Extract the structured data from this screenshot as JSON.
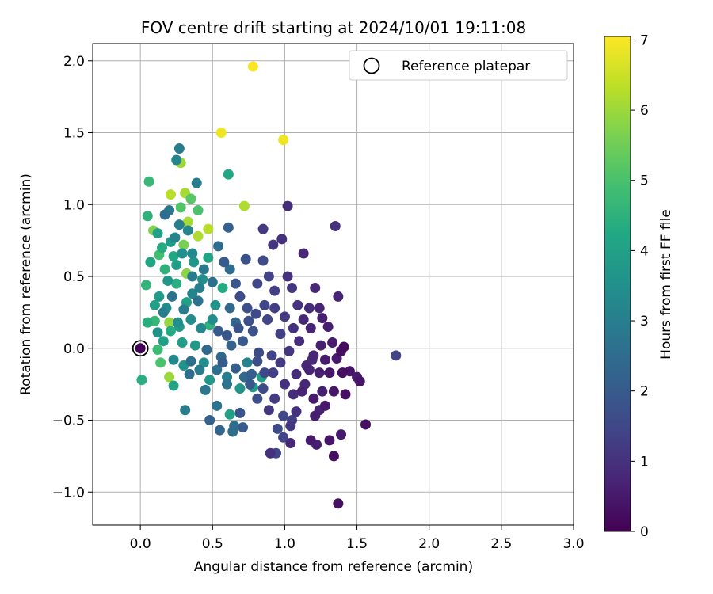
{
  "chart_data": {
    "type": "scatter",
    "title": "FOV centre drift starting at 2024/10/01 19:11:08",
    "xlabel": "Angular distance from reference (arcmin)",
    "ylabel": "Rotation from reference (arcmin)",
    "xlim": [
      -0.33,
      3.0
    ],
    "ylim": [
      -1.23,
      2.12
    ],
    "xticks": [
      "0.0",
      "0.5",
      "1.0",
      "1.5",
      "2.0",
      "2.5",
      "3.0"
    ],
    "xtick_values": [
      0,
      0.5,
      1,
      1.5,
      2,
      2.5,
      3
    ],
    "yticks": [
      "−1.0",
      "−0.5",
      "0.0",
      "0.5",
      "1.0",
      "1.5",
      "2.0"
    ],
    "ytick_values": [
      -1,
      -0.5,
      0,
      0.5,
      1,
      1.5,
      2
    ],
    "grid": true,
    "legend": {
      "position": "top-right",
      "entries": [
        "Reference platepar"
      ]
    },
    "reference_point": {
      "x": 0.0,
      "y": 0.0
    },
    "colorbar": {
      "label": "Hours from first FF file",
      "range": [
        0,
        7.05
      ],
      "ticks": [
        "0",
        "1",
        "2",
        "3",
        "4",
        "5",
        "6",
        "7"
      ],
      "tick_values": [
        0,
        1,
        2,
        3,
        4,
        5,
        6,
        7
      ],
      "colormap": "viridis"
    },
    "points": [
      {
        "x": 0.78,
        "y": 1.96,
        "t": 7.0
      },
      {
        "x": 0.56,
        "y": 1.5,
        "t": 6.9
      },
      {
        "x": 0.99,
        "y": 1.45,
        "t": 6.9
      },
      {
        "x": 0.72,
        "y": 0.99,
        "t": 6.2
      },
      {
        "x": 0.31,
        "y": 1.08,
        "t": 6.1
      },
      {
        "x": 0.21,
        "y": 1.07,
        "t": 6.3
      },
      {
        "x": 0.28,
        "y": 1.29,
        "t": 6.0
      },
      {
        "x": 0.47,
        "y": 0.83,
        "t": 6.3
      },
      {
        "x": 0.4,
        "y": 0.78,
        "t": 6.2
      },
      {
        "x": 0.33,
        "y": 0.88,
        "t": 6.1
      },
      {
        "x": 0.2,
        "y": 0.18,
        "t": 5.9
      },
      {
        "x": 0.2,
        "y": -0.2,
        "t": 6.0
      },
      {
        "x": 0.32,
        "y": 0.52,
        "t": 5.8
      },
      {
        "x": 0.09,
        "y": 0.82,
        "t": 5.7
      },
      {
        "x": 0.3,
        "y": 0.72,
        "t": 5.6
      },
      {
        "x": 0.06,
        "y": 1.16,
        "t": 4.7
      },
      {
        "x": 0.35,
        "y": 1.04,
        "t": 5.2
      },
      {
        "x": 0.4,
        "y": 0.96,
        "t": 5.0
      },
      {
        "x": 0.28,
        "y": 0.98,
        "t": 5.1
      },
      {
        "x": 0.05,
        "y": 0.92,
        "t": 4.5
      },
      {
        "x": 0.61,
        "y": 1.21,
        "t": 4.2
      },
      {
        "x": 0.27,
        "y": 1.39,
        "t": 2.9
      },
      {
        "x": 0.25,
        "y": 1.31,
        "t": 3.2
      },
      {
        "x": 0.39,
        "y": 1.15,
        "t": 3.0
      },
      {
        "x": 0.17,
        "y": 0.93,
        "t": 2.5
      },
      {
        "x": 0.24,
        "y": 0.77,
        "t": 3.1
      },
      {
        "x": 0.13,
        "y": 0.65,
        "t": 4.9
      },
      {
        "x": 0.07,
        "y": 0.6,
        "t": 4.2
      },
      {
        "x": 0.17,
        "y": 0.55,
        "t": 4.5
      },
      {
        "x": 0.25,
        "y": 0.58,
        "t": 3.9
      },
      {
        "x": 0.04,
        "y": 0.44,
        "t": 4.6
      },
      {
        "x": 0.13,
        "y": 0.36,
        "t": 3.8
      },
      {
        "x": 0.18,
        "y": 0.28,
        "t": 3.4
      },
      {
        "x": 0.1,
        "y": 0.19,
        "t": 4.7
      },
      {
        "x": 0.05,
        "y": 0.18,
        "t": 4.4
      },
      {
        "x": 0.21,
        "y": 0.12,
        "t": 4.3
      },
      {
        "x": 0.29,
        "y": 0.04,
        "t": 3.9
      },
      {
        "x": 0.23,
        "y": -0.08,
        "t": 3.3
      },
      {
        "x": 0.12,
        "y": -0.01,
        "t": 4.8
      },
      {
        "x": 0.14,
        "y": -0.1,
        "t": 5.0
      },
      {
        "x": 0.01,
        "y": -0.22,
        "t": 4.4
      },
      {
        "x": 0.23,
        "y": -0.26,
        "t": 4.1
      },
      {
        "x": 0.16,
        "y": 0.25,
        "t": 3.0
      },
      {
        "x": 0.22,
        "y": 0.36,
        "t": 2.7
      },
      {
        "x": 0.3,
        "y": 0.27,
        "t": 2.9
      },
      {
        "x": 0.35,
        "y": 0.2,
        "t": 3.4
      },
      {
        "x": 0.36,
        "y": 0.38,
        "t": 3.2
      },
      {
        "x": 0.41,
        "y": 0.42,
        "t": 3.0
      },
      {
        "x": 0.44,
        "y": 0.55,
        "t": 2.8
      },
      {
        "x": 0.47,
        "y": 0.63,
        "t": 4.1
      },
      {
        "x": 0.54,
        "y": 0.71,
        "t": 2.5
      },
      {
        "x": 0.61,
        "y": 0.84,
        "t": 2.2
      },
      {
        "x": 0.58,
        "y": 0.6,
        "t": 2.0
      },
      {
        "x": 0.48,
        "y": 0.16,
        "t": 4.5
      },
      {
        "x": 0.42,
        "y": 0.14,
        "t": 3.3
      },
      {
        "x": 0.38,
        "y": 0.02,
        "t": 3.7
      },
      {
        "x": 0.46,
        "y": -0.01,
        "t": 2.4
      },
      {
        "x": 0.35,
        "y": -0.09,
        "t": 2.6
      },
      {
        "x": 0.31,
        "y": -0.43,
        "t": 2.9
      },
      {
        "x": 0.45,
        "y": -0.29,
        "t": 2.8
      },
      {
        "x": 0.48,
        "y": -0.5,
        "t": 2.2
      },
      {
        "x": 0.53,
        "y": -0.4,
        "t": 2.7
      },
      {
        "x": 0.55,
        "y": -0.57,
        "t": 2.3
      },
      {
        "x": 0.62,
        "y": -0.46,
        "t": 4.0
      },
      {
        "x": 0.65,
        "y": -0.54,
        "t": 2.5
      },
      {
        "x": 0.69,
        "y": -0.45,
        "t": 1.8
      },
      {
        "x": 0.71,
        "y": -0.55,
        "t": 2.0
      },
      {
        "x": 0.64,
        "y": -0.58,
        "t": 2.6
      },
      {
        "x": 0.6,
        "y": -0.25,
        "t": 2.7
      },
      {
        "x": 0.66,
        "y": -0.14,
        "t": 2.1
      },
      {
        "x": 0.72,
        "y": -0.2,
        "t": 2.4
      },
      {
        "x": 0.74,
        "y": -0.1,
        "t": 3.1
      },
      {
        "x": 0.56,
        "y": -0.06,
        "t": 2.4
      },
      {
        "x": 0.63,
        "y": 0.02,
        "t": 2.2
      },
      {
        "x": 0.71,
        "y": 0.05,
        "t": 2.0
      },
      {
        "x": 0.78,
        "y": 0.12,
        "t": 1.8
      },
      {
        "x": 0.74,
        "y": 0.28,
        "t": 1.7
      },
      {
        "x": 0.69,
        "y": 0.36,
        "t": 1.6
      },
      {
        "x": 0.66,
        "y": 0.45,
        "t": 1.9
      },
      {
        "x": 0.62,
        "y": 0.55,
        "t": 2.5
      },
      {
        "x": 0.73,
        "y": 0.62,
        "t": 1.8
      },
      {
        "x": 0.85,
        "y": 0.61,
        "t": 1.6
      },
      {
        "x": 0.89,
        "y": 0.5,
        "t": 1.4
      },
      {
        "x": 0.93,
        "y": 0.4,
        "t": 1.3
      },
      {
        "x": 0.81,
        "y": 0.45,
        "t": 1.5
      },
      {
        "x": 0.85,
        "y": 0.83,
        "t": 1.2
      },
      {
        "x": 0.92,
        "y": 0.72,
        "t": 1.1
      },
      {
        "x": 0.98,
        "y": 0.76,
        "t": 1.0
      },
      {
        "x": 1.02,
        "y": 0.99,
        "t": 0.9
      },
      {
        "x": 1.05,
        "y": 0.42,
        "t": 1.1
      },
      {
        "x": 1.13,
        "y": 0.66,
        "t": 0.8
      },
      {
        "x": 1.02,
        "y": 0.5,
        "t": 1.0
      },
      {
        "x": 1.09,
        "y": 0.3,
        "t": 1.0
      },
      {
        "x": 1.17,
        "y": 0.28,
        "t": 0.9
      },
      {
        "x": 1.21,
        "y": 0.42,
        "t": 0.8
      },
      {
        "x": 1.24,
        "y": 0.28,
        "t": 0.7
      },
      {
        "x": 1.35,
        "y": 0.85,
        "t": 1.0
      },
      {
        "x": 1.37,
        "y": 0.36,
        "t": 0.7
      },
      {
        "x": 1.3,
        "y": 0.15,
        "t": 0.6
      },
      {
        "x": 1.25,
        "y": 0.02,
        "t": 0.6
      },
      {
        "x": 1.2,
        "y": -0.05,
        "t": 0.7
      },
      {
        "x": 1.15,
        "y": -0.12,
        "t": 0.8
      },
      {
        "x": 1.08,
        "y": -0.18,
        "t": 0.9
      },
      {
        "x": 1.12,
        "y": -0.3,
        "t": 0.7
      },
      {
        "x": 1.2,
        "y": -0.35,
        "t": 0.5
      },
      {
        "x": 1.28,
        "y": -0.4,
        "t": 0.5
      },
      {
        "x": 1.34,
        "y": -0.3,
        "t": 0.4
      },
      {
        "x": 1.4,
        "y": -0.17,
        "t": 0.3
      },
      {
        "x": 1.42,
        "y": -0.32,
        "t": 0.3
      },
      {
        "x": 1.31,
        "y": -0.64,
        "t": 0.4
      },
      {
        "x": 1.34,
        "y": -0.75,
        "t": 0.3
      },
      {
        "x": 1.39,
        "y": -0.6,
        "t": 0.5
      },
      {
        "x": 1.37,
        "y": -1.08,
        "t": 0.3
      },
      {
        "x": 1.22,
        "y": -0.67,
        "t": 0.6
      },
      {
        "x": 1.18,
        "y": -0.64,
        "t": 0.5
      },
      {
        "x": 1.04,
        "y": -0.66,
        "t": 0.8
      },
      {
        "x": 0.99,
        "y": -0.62,
        "t": 1.4
      },
      {
        "x": 0.94,
        "y": -0.73,
        "t": 1.5
      },
      {
        "x": 0.9,
        "y": -0.73,
        "t": 1.0
      },
      {
        "x": 0.95,
        "y": -0.56,
        "t": 1.6
      },
      {
        "x": 1.05,
        "y": -0.5,
        "t": 1.3
      },
      {
        "x": 0.99,
        "y": -0.47,
        "t": 1.5
      },
      {
        "x": 1.04,
        "y": -0.54,
        "t": 1.1
      },
      {
        "x": 1.08,
        "y": -0.44,
        "t": 1.0
      },
      {
        "x": 1.21,
        "y": -0.47,
        "t": 0.6
      },
      {
        "x": 1.24,
        "y": -0.43,
        "t": 0.7
      },
      {
        "x": 1.52,
        "y": -0.23,
        "t": 0.4
      },
      {
        "x": 1.5,
        "y": -0.2,
        "t": 0.5
      },
      {
        "x": 1.56,
        "y": -0.53,
        "t": 0.3
      },
      {
        "x": 1.77,
        "y": -0.05,
        "t": 1.4
      },
      {
        "x": 1.41,
        "y": 0.01,
        "t": 0.2
      },
      {
        "x": 1.39,
        "y": -0.02,
        "t": 0.3
      },
      {
        "x": 0.85,
        "y": -0.28,
        "t": 1.6
      },
      {
        "x": 0.81,
        "y": -0.35,
        "t": 1.7
      },
      {
        "x": 0.86,
        "y": -0.17,
        "t": 1.5
      },
      {
        "x": 0.91,
        "y": -0.05,
        "t": 1.4
      },
      {
        "x": 0.97,
        "y": 0.1,
        "t": 1.3
      },
      {
        "x": 0.88,
        "y": 0.2,
        "t": 1.5
      },
      {
        "x": 0.82,
        "y": -0.03,
        "t": 1.6
      },
      {
        "x": 0.77,
        "y": -0.18,
        "t": 2.1
      },
      {
        "x": 0.76,
        "y": -0.25,
        "t": 1.9
      },
      {
        "x": 0.69,
        "y": -0.28,
        "t": 3.7
      },
      {
        "x": 0.78,
        "y": -0.27,
        "t": 3.8
      },
      {
        "x": 0.84,
        "y": -0.2,
        "t": 3.9
      },
      {
        "x": 0.57,
        "y": 0.42,
        "t": 4.3
      },
      {
        "x": 0.52,
        "y": 0.3,
        "t": 3.6
      },
      {
        "x": 0.5,
        "y": 0.2,
        "t": 3.4
      },
      {
        "x": 0.27,
        "y": 0.15,
        "t": 3.8
      },
      {
        "x": 0.16,
        "y": 0.05,
        "t": 4.0
      },
      {
        "x": 0.12,
        "y": 0.11,
        "t": 3.6
      },
      {
        "x": 0.1,
        "y": 0.3,
        "t": 4.0
      },
      {
        "x": 0.19,
        "y": 0.47,
        "t": 3.7
      },
      {
        "x": 0.23,
        "y": 0.64,
        "t": 4.2
      },
      {
        "x": 0.29,
        "y": 0.66,
        "t": 3.5
      },
      {
        "x": 0.36,
        "y": 0.66,
        "t": 3.3
      },
      {
        "x": 0.33,
        "y": 0.82,
        "t": 3.2
      },
      {
        "x": 0.27,
        "y": 0.86,
        "t": 3.0
      },
      {
        "x": 0.2,
        "y": 0.96,
        "t": 2.8
      },
      {
        "x": 0.36,
        "y": 0.5,
        "t": 2.9
      },
      {
        "x": 0.43,
        "y": 0.48,
        "t": 3.4
      },
      {
        "x": 0.5,
        "y": 0.46,
        "t": 2.6
      },
      {
        "x": 0.4,
        "y": 0.33,
        "t": 2.7
      },
      {
        "x": 0.62,
        "y": 0.28,
        "t": 2.4
      },
      {
        "x": 0.66,
        "y": 0.18,
        "t": 2.3
      },
      {
        "x": 0.54,
        "y": 0.12,
        "t": 2.0
      },
      {
        "x": 0.6,
        "y": 0.09,
        "t": 1.9
      },
      {
        "x": 0.68,
        "y": 0.14,
        "t": 1.8
      },
      {
        "x": 0.75,
        "y": 0.19,
        "t": 1.7
      },
      {
        "x": 0.8,
        "y": 0.24,
        "t": 1.6
      },
      {
        "x": 0.86,
        "y": 0.3,
        "t": 1.5
      },
      {
        "x": 0.93,
        "y": 0.28,
        "t": 1.3
      },
      {
        "x": 1.0,
        "y": 0.22,
        "t": 1.2
      },
      {
        "x": 1.06,
        "y": 0.14,
        "t": 1.0
      },
      {
        "x": 1.1,
        "y": 0.05,
        "t": 0.9
      },
      {
        "x": 1.03,
        "y": -0.02,
        "t": 1.1
      },
      {
        "x": 0.97,
        "y": -0.1,
        "t": 1.2
      },
      {
        "x": 0.92,
        "y": -0.17,
        "t": 1.3
      },
      {
        "x": 1.0,
        "y": -0.25,
        "t": 1.0
      },
      {
        "x": 1.06,
        "y": -0.32,
        "t": 0.9
      },
      {
        "x": 1.14,
        "y": -0.25,
        "t": 0.8
      },
      {
        "x": 1.17,
        "y": -0.15,
        "t": 0.7
      },
      {
        "x": 1.24,
        "y": -0.17,
        "t": 0.6
      },
      {
        "x": 1.28,
        "y": -0.08,
        "t": 0.5
      },
      {
        "x": 1.31,
        "y": -0.17,
        "t": 0.4
      },
      {
        "x": 1.36,
        "y": -0.07,
        "t": 0.5
      },
      {
        "x": 1.26,
        "y": -0.3,
        "t": 0.6
      },
      {
        "x": 1.19,
        "y": -0.08,
        "t": 0.9
      },
      {
        "x": 1.13,
        "y": 0.2,
        "t": 0.8
      },
      {
        "x": 1.18,
        "y": 0.14,
        "t": 0.7
      },
      {
        "x": 1.26,
        "y": 0.21,
        "t": 0.6
      },
      {
        "x": 1.33,
        "y": 0.04,
        "t": 0.5
      },
      {
        "x": 1.45,
        "y": -0.16,
        "t": 0.4
      },
      {
        "x": 0.93,
        "y": -0.35,
        "t": 1.2
      },
      {
        "x": 0.89,
        "y": -0.43,
        "t": 1.1
      },
      {
        "x": 0.81,
        "y": -0.09,
        "t": 1.7
      },
      {
        "x": 0.44,
        "y": -0.1,
        "t": 3.5
      },
      {
        "x": 0.48,
        "y": -0.22,
        "t": 3.7
      },
      {
        "x": 0.53,
        "y": -0.15,
        "t": 2.6
      },
      {
        "x": 0.57,
        "y": -0.1,
        "t": 2.0
      },
      {
        "x": 0.6,
        "y": -0.2,
        "t": 3.0
      },
      {
        "x": 0.41,
        "y": -0.15,
        "t": 2.9
      },
      {
        "x": 0.34,
        "y": -0.18,
        "t": 2.5
      },
      {
        "x": 0.3,
        "y": -0.12,
        "t": 3.6
      },
      {
        "x": 0.26,
        "y": 0.18,
        "t": 3.5
      },
      {
        "x": 0.32,
        "y": 0.32,
        "t": 4.0
      },
      {
        "x": 0.25,
        "y": 0.45,
        "t": 4.4
      },
      {
        "x": 0.15,
        "y": 0.7,
        "t": 4.3
      },
      {
        "x": 0.12,
        "y": 0.8,
        "t": 4.0
      },
      {
        "x": 0.21,
        "y": 0.74,
        "t": 3.8
      },
      {
        "x": 0.37,
        "y": 0.6,
        "t": 3.7
      }
    ]
  }
}
